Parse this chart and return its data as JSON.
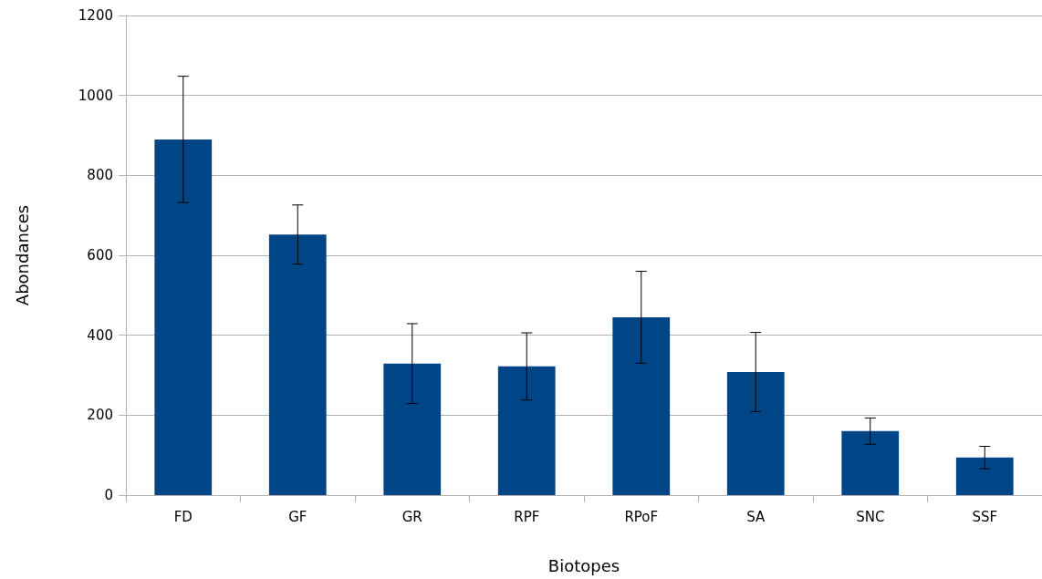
{
  "chart_data": {
    "type": "bar",
    "xlabel": "Biotopes",
    "ylabel": "Abondances",
    "categories": [
      "FD",
      "GF",
      "GR",
      "RPF",
      "RPoF",
      "SA",
      "SNC",
      "SSF"
    ],
    "values": [
      890,
      652,
      329,
      322,
      445,
      308,
      160,
      94
    ],
    "errors": [
      158,
      74,
      100,
      84,
      115,
      99,
      33,
      28
    ],
    "color": "#004586",
    "ylim": [
      0,
      1200
    ],
    "yticks": [
      0,
      200,
      400,
      600,
      800,
      1000,
      1200
    ],
    "grid": "y"
  }
}
